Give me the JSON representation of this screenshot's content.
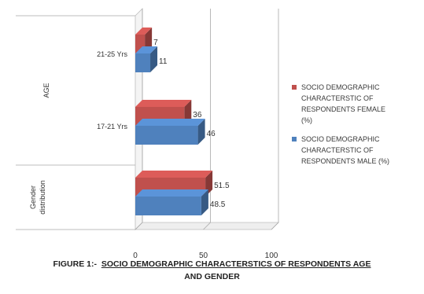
{
  "chart_data": {
    "type": "bar",
    "orientation": "horizontal",
    "style": "3d-clustered",
    "groups": [
      {
        "name": "AGE",
        "categories": [
          "21-25 Yrs",
          "17-21 Yrs"
        ]
      },
      {
        "name": "Gender distribution",
        "categories": [
          ""
        ]
      }
    ],
    "categories": [
      "21-25 Yrs",
      "17-21 Yrs",
      ""
    ],
    "series": [
      {
        "name": "SOCIO DEMOGRAPHIC CHARACTERSTIC OF RESPONDENTS FEMALE (%)",
        "color": "#c0504d",
        "values": [
          7,
          36,
          51.5
        ],
        "labels": [
          "7",
          "36",
          "51.5"
        ]
      },
      {
        "name": "SOCIO DEMOGRAPHIC CHARACTERSTIC OF RESPONDENTS MALE (%)",
        "color": "#4f81bd",
        "values": [
          11,
          46,
          48.5
        ],
        "labels": [
          "11",
          "46",
          "48.5"
        ]
      }
    ],
    "xlim": [
      0,
      100
    ],
    "xticks": [
      "0",
      "50",
      "100"
    ],
    "legend": {
      "placement": "right",
      "entries": [
        {
          "lines": [
            "SOCIO DEMOGRAPHIC",
            "CHARACTERSTIC  OF",
            "RESPONDENTS  FEMALE",
            "(%)"
          ],
          "color": "#c0504d"
        },
        {
          "lines": [
            "SOCIO DEMOGRAPHIC",
            "CHARACTERSTIC  OF",
            "RESPONDENTS  MALE (%)"
          ],
          "color": "#4f81bd"
        }
      ]
    },
    "grid": true
  },
  "caption": {
    "figure_label": "FIGURE 1:-",
    "line1": "SOCIO DEMOGRAPHIC CHARACTERSTICS OF RESPONDENTS AGE",
    "line2": "AND GENDER"
  }
}
